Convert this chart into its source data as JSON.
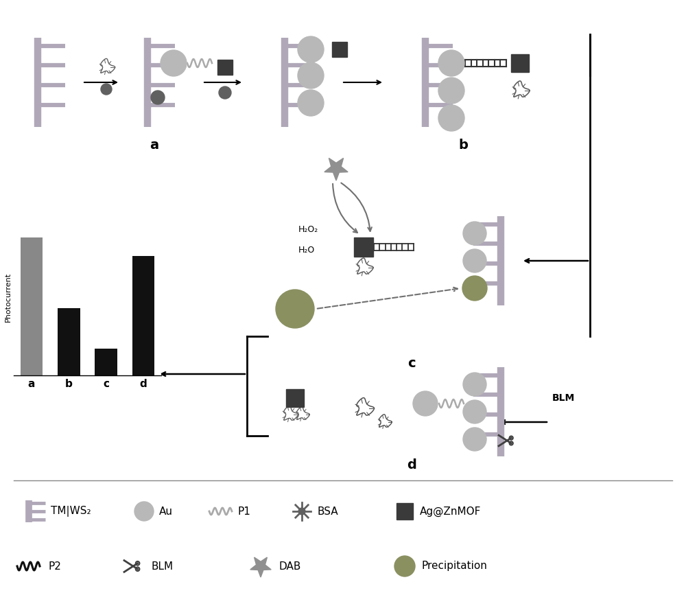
{
  "bg_color": "#ffffff",
  "bar_values": [
    0.92,
    0.45,
    0.18,
    0.8
  ],
  "bar_colors": [
    "#888888",
    "#111111",
    "#111111",
    "#111111"
  ],
  "bar_labels": [
    "a",
    "b",
    "c",
    "d"
  ],
  "bar_ylabel": "Photocurrent",
  "electrode_color": "#b0a8b8",
  "au_color": "#b8b8b8",
  "mof_color": "#3a3a3a",
  "bsa_color": "#606060",
  "precip_color": "#8a9060",
  "dark_color": "#333333",
  "dna_color": "#555555",
  "arrow_color": "#111111",
  "star_color": "#909090",
  "legend_items_row1": [
    "TM|WS₂",
    "Au",
    "P1",
    "BSA",
    "Ag@ZnMOF"
  ],
  "legend_items_row2": [
    "P2",
    "BLM",
    "DAB",
    "Precipitation"
  ]
}
